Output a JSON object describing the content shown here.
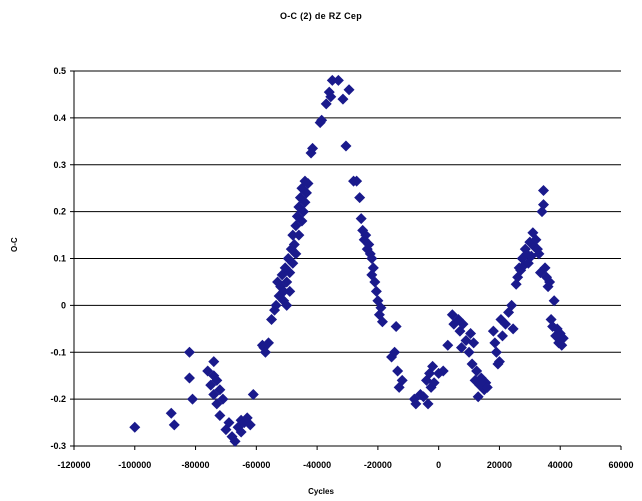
{
  "chart_data": {
    "type": "scatter",
    "title": "O-C (2) de RZ Cep",
    "xlabel": "Cycles",
    "ylabel": "O-C",
    "xlim": [
      -120000,
      60000
    ],
    "ylim": [
      -0.3,
      0.5
    ],
    "xticks": [
      -120000,
      -100000,
      -80000,
      -60000,
      -40000,
      -20000,
      0,
      20000,
      40000,
      60000
    ],
    "yticks": [
      0.5,
      0.4,
      0.3,
      0.2,
      0.1,
      0,
      -0.1,
      -0.2,
      -0.3
    ],
    "grid": "horizontal",
    "marker": "diamond",
    "marker_color": "#1a1a8c",
    "series": [
      {
        "points": [
          [
            -100000,
            -0.26
          ],
          [
            -88000,
            -0.23
          ],
          [
            -87000,
            -0.255
          ],
          [
            -82000,
            -0.1
          ],
          [
            -82000,
            -0.155
          ],
          [
            -81000,
            -0.2
          ],
          [
            -76000,
            -0.14
          ],
          [
            -75000,
            -0.17
          ],
          [
            -74000,
            -0.12
          ],
          [
            -74000,
            -0.15
          ],
          [
            -74000,
            -0.19
          ],
          [
            -73000,
            -0.16
          ],
          [
            -73000,
            -0.21
          ],
          [
            -72000,
            -0.18
          ],
          [
            -72000,
            -0.235
          ],
          [
            -71000,
            -0.2
          ],
          [
            -70000,
            -0.265
          ],
          [
            -69000,
            -0.25
          ],
          [
            -68000,
            -0.28
          ],
          [
            -67000,
            -0.29
          ],
          [
            -66000,
            -0.26
          ],
          [
            -65000,
            -0.245
          ],
          [
            -65000,
            -0.27
          ],
          [
            -64000,
            -0.25
          ],
          [
            -63000,
            -0.24
          ],
          [
            -62000,
            -0.255
          ],
          [
            -61000,
            -0.19
          ],
          [
            -58000,
            -0.085
          ],
          [
            -57500,
            -0.09
          ],
          [
            -57000,
            -0.1
          ],
          [
            -56000,
            -0.08
          ],
          [
            -55000,
            -0.03
          ],
          [
            -54000,
            -0.01
          ],
          [
            -53500,
            0.0
          ],
          [
            -53000,
            0.05
          ],
          [
            -52500,
            0.02
          ],
          [
            -52000,
            0.04
          ],
          [
            -51500,
            0.065
          ],
          [
            -51000,
            0.01
          ],
          [
            -51000,
            0.03
          ],
          [
            -50500,
            0.08
          ],
          [
            -50000,
            0.05
          ],
          [
            -50000,
            0.0
          ],
          [
            -49500,
            0.1
          ],
          [
            -49000,
            0.07
          ],
          [
            -49000,
            0.03
          ],
          [
            -48500,
            0.12
          ],
          [
            -48000,
            0.15
          ],
          [
            -48000,
            0.09
          ],
          [
            -47500,
            0.13
          ],
          [
            -47000,
            0.17
          ],
          [
            -47000,
            0.11
          ],
          [
            -46500,
            0.19
          ],
          [
            -46000,
            0.15
          ],
          [
            -46000,
            0.21
          ],
          [
            -45500,
            0.23
          ],
          [
            -45000,
            0.18
          ],
          [
            -45000,
            0.25
          ],
          [
            -44500,
            0.2
          ],
          [
            -44000,
            0.22
          ],
          [
            -44000,
            0.265
          ],
          [
            -43500,
            0.24
          ],
          [
            -43000,
            0.26
          ],
          [
            -42000,
            0.325
          ],
          [
            -41500,
            0.335
          ],
          [
            -39000,
            0.39
          ],
          [
            -38500,
            0.395
          ],
          [
            -37000,
            0.43
          ],
          [
            -36000,
            0.455
          ],
          [
            -35500,
            0.445
          ],
          [
            -35000,
            0.48
          ],
          [
            -33000,
            0.48
          ],
          [
            -31500,
            0.44
          ],
          [
            -30500,
            0.34
          ],
          [
            -29500,
            0.46
          ],
          [
            -28000,
            0.265
          ],
          [
            -27000,
            0.265
          ],
          [
            -26000,
            0.23
          ],
          [
            -25500,
            0.185
          ],
          [
            -25000,
            0.16
          ],
          [
            -24500,
            0.14
          ],
          [
            -24000,
            0.15
          ],
          [
            -23500,
            0.12
          ],
          [
            -23000,
            0.13
          ],
          [
            -22500,
            0.11
          ],
          [
            -22000,
            0.1
          ],
          [
            -22000,
            0.065
          ],
          [
            -21500,
            0.08
          ],
          [
            -21000,
            0.05
          ],
          [
            -20500,
            0.03
          ],
          [
            -20000,
            0.01
          ],
          [
            -19500,
            -0.02
          ],
          [
            -19000,
            -0.005
          ],
          [
            -18500,
            -0.035
          ],
          [
            -15500,
            -0.11
          ],
          [
            -14500,
            -0.1
          ],
          [
            -14000,
            -0.045
          ],
          [
            -13500,
            -0.14
          ],
          [
            -13000,
            -0.175
          ],
          [
            -12000,
            -0.16
          ],
          [
            -8000,
            -0.2
          ],
          [
            -7500,
            -0.21
          ],
          [
            -6000,
            -0.19
          ],
          [
            -5000,
            -0.195
          ],
          [
            -4000,
            -0.16
          ],
          [
            -3500,
            -0.21
          ],
          [
            -3000,
            -0.145
          ],
          [
            -2500,
            -0.175
          ],
          [
            -2000,
            -0.13
          ],
          [
            -1500,
            -0.165
          ],
          [
            0,
            -0.145
          ],
          [
            1500,
            -0.14
          ],
          [
            3000,
            -0.085
          ],
          [
            4500,
            -0.02
          ],
          [
            5000,
            -0.04
          ],
          [
            6500,
            -0.03
          ],
          [
            7000,
            -0.055
          ],
          [
            7500,
            -0.09
          ],
          [
            8000,
            -0.04
          ],
          [
            9000,
            -0.075
          ],
          [
            10000,
            -0.1
          ],
          [
            10500,
            -0.06
          ],
          [
            11000,
            -0.125
          ],
          [
            11500,
            -0.08
          ],
          [
            12000,
            -0.16
          ],
          [
            12500,
            -0.14
          ],
          [
            13000,
            -0.195
          ],
          [
            13500,
            -0.17
          ],
          [
            14000,
            -0.155
          ],
          [
            15000,
            -0.18
          ],
          [
            15500,
            -0.165
          ],
          [
            16000,
            -0.175
          ],
          [
            18000,
            -0.055
          ],
          [
            18500,
            -0.08
          ],
          [
            19000,
            -0.1
          ],
          [
            19500,
            -0.125
          ],
          [
            20000,
            -0.12
          ],
          [
            20500,
            -0.03
          ],
          [
            21000,
            -0.065
          ],
          [
            22000,
            -0.04
          ],
          [
            23000,
            -0.015
          ],
          [
            24000,
            0.0
          ],
          [
            24500,
            -0.05
          ],
          [
            25500,
            0.045
          ],
          [
            26000,
            0.06
          ],
          [
            26500,
            0.08
          ],
          [
            27000,
            0.075
          ],
          [
            27500,
            0.1
          ],
          [
            28000,
            0.085
          ],
          [
            28500,
            0.12
          ],
          [
            29000,
            0.11
          ],
          [
            29500,
            0.09
          ],
          [
            30000,
            0.135
          ],
          [
            30500,
            0.105
          ],
          [
            31000,
            0.155
          ],
          [
            31500,
            0.125
          ],
          [
            32000,
            0.14
          ],
          [
            32500,
            0.12
          ],
          [
            33000,
            0.11
          ],
          [
            33500,
            0.07
          ],
          [
            34000,
            0.2
          ],
          [
            34500,
            0.245
          ],
          [
            34500,
            0.215
          ],
          [
            35000,
            0.08
          ],
          [
            35500,
            0.06
          ],
          [
            36000,
            0.04
          ],
          [
            36500,
            0.05
          ],
          [
            37000,
            -0.03
          ],
          [
            37500,
            -0.045
          ],
          [
            38000,
            0.01
          ],
          [
            38500,
            -0.065
          ],
          [
            39000,
            -0.05
          ],
          [
            39500,
            -0.08
          ],
          [
            40000,
            -0.06
          ],
          [
            40500,
            -0.085
          ],
          [
            41000,
            -0.07
          ]
        ]
      }
    ]
  }
}
